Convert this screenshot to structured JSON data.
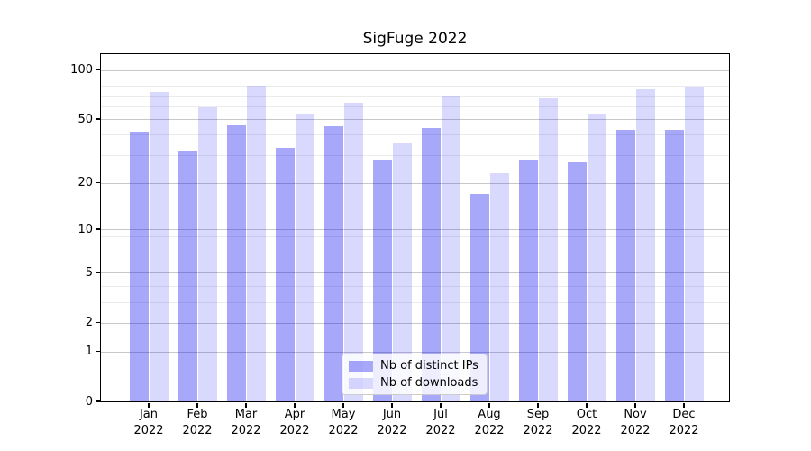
{
  "title": "SigFuge 2022",
  "chart_data": {
    "type": "bar",
    "title": "SigFuge 2022",
    "categories": [
      "Jan",
      "Feb",
      "Mar",
      "Apr",
      "May",
      "Jun",
      "Jul",
      "Aug",
      "Sep",
      "Oct",
      "Nov",
      "Dec"
    ],
    "category_year": "2022",
    "series": [
      {
        "name": "Nb of distinct IPs",
        "color": "rgba(0,0,240,0.34)",
        "values": [
          42,
          32,
          46,
          33,
          45,
          28,
          44,
          17,
          28,
          27,
          43,
          43
        ]
      },
      {
        "name": "Nb of downloads",
        "color": "rgba(0,0,240,0.15)",
        "values": [
          73,
          59,
          80,
          54,
          63,
          36,
          70,
          23,
          67,
          54,
          76,
          78
        ]
      }
    ],
    "y_axis": {
      "scale": "log1p",
      "major_ticks": [
        0,
        1,
        2,
        5,
        10,
        20,
        50,
        100
      ],
      "minor_ticks": [
        3,
        4,
        6,
        7,
        8,
        9,
        30,
        40,
        60,
        70,
        80,
        90
      ],
      "max": 125
    },
    "legend": {
      "position": "lower center"
    },
    "grid": true,
    "colors": {
      "major_grid": "#c8c8c8",
      "minor_grid": "#ebebeb",
      "axis": "#000000",
      "background": "#ffffff"
    }
  }
}
